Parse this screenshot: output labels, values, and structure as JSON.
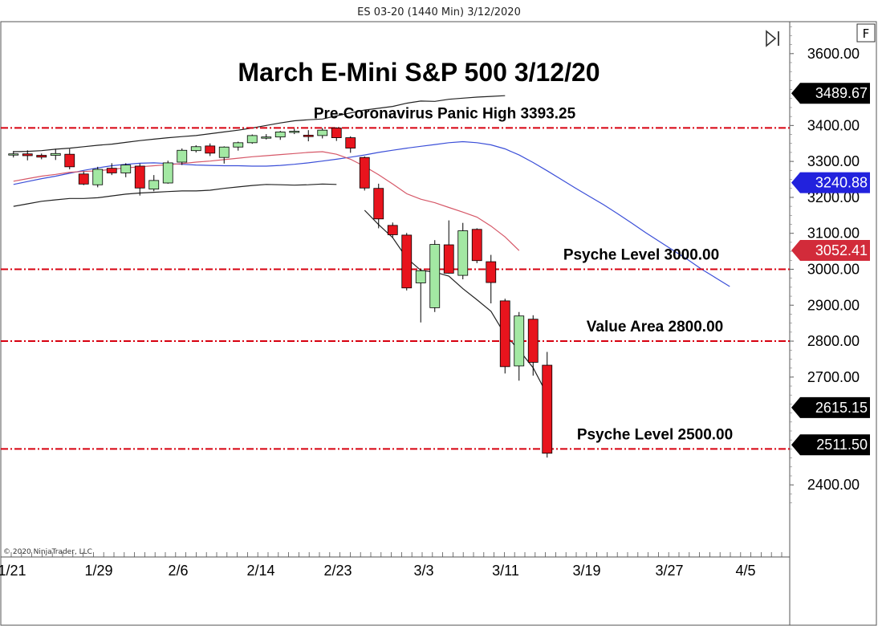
{
  "header": {
    "caption": "ES 03-20 (1440 Min)  3/12/2020",
    "f_button": "F",
    "copyright": "© 2020 NinjaTrader, LLC",
    "scroll_end_icon": "skip-to-end-icon"
  },
  "chart_data": {
    "type": "candlestick",
    "title": "March E-Mini S&P 500 3/12/20",
    "xlabel": "",
    "ylabel": "",
    "ylim": [
      2320,
      3700
    ],
    "grid": false,
    "y_ticks": [
      "3600.00",
      "3400.00",
      "3300.00",
      "3200.00",
      "3100.00",
      "3000.00",
      "2900.00",
      "2800.00",
      "2700.00",
      "2400.00"
    ],
    "x_ticks": [
      {
        "date": "1/21",
        "label": "1/21"
      },
      {
        "date": "1/29",
        "label": "1/29"
      },
      {
        "date": "2/6",
        "label": "2/6"
      },
      {
        "date": "2/14",
        "label": "2/14"
      },
      {
        "date": "2/23",
        "label": "2/23"
      },
      {
        "date": "3/3",
        "label": "3/3"
      },
      {
        "date": "3/11",
        "label": "3/11"
      },
      {
        "date": "3/19",
        "label": "3/19"
      },
      {
        "date": "3/27",
        "label": "3/27"
      },
      {
        "date": "4/5",
        "label": "4/5"
      }
    ],
    "candles": [
      {
        "date": "1/21",
        "open": 3318,
        "high": 3329,
        "low": 3311,
        "close": 3321
      },
      {
        "date": "1/22",
        "open": 3321,
        "high": 3331,
        "low": 3303,
        "close": 3316
      },
      {
        "date": "1/23",
        "open": 3317,
        "high": 3322,
        "low": 3306,
        "close": 3312
      },
      {
        "date": "1/24",
        "open": 3317,
        "high": 3335,
        "low": 3304,
        "close": 3322
      },
      {
        "date": "1/26",
        "open": 3320,
        "high": 3335,
        "low": 3278,
        "close": 3285
      },
      {
        "date": "1/27",
        "open": 3265,
        "high": 3272,
        "low": 3234,
        "close": 3237
      },
      {
        "date": "1/28",
        "open": 3235,
        "high": 3285,
        "low": 3228,
        "close": 3278
      },
      {
        "date": "1/29",
        "open": 3281,
        "high": 3295,
        "low": 3262,
        "close": 3268
      },
      {
        "date": "1/30",
        "open": 3268,
        "high": 3295,
        "low": 3256,
        "close": 3290
      },
      {
        "date": "1/31",
        "open": 3287,
        "high": 3294,
        "low": 3205,
        "close": 3226
      },
      {
        "date": "2/2",
        "open": 3223,
        "high": 3262,
        "low": 3217,
        "close": 3247
      },
      {
        "date": "2/3",
        "open": 3240,
        "high": 3302,
        "low": 3238,
        "close": 3296
      },
      {
        "date": "2/4",
        "open": 3298,
        "high": 3336,
        "low": 3290,
        "close": 3331
      },
      {
        "date": "2/5",
        "open": 3330,
        "high": 3345,
        "low": 3325,
        "close": 3341
      },
      {
        "date": "2/6",
        "open": 3343,
        "high": 3350,
        "low": 3315,
        "close": 3323
      },
      {
        "date": "2/7",
        "open": 3311,
        "high": 3342,
        "low": 3294,
        "close": 3340
      },
      {
        "date": "2/9",
        "open": 3340,
        "high": 3355,
        "low": 3330,
        "close": 3352
      },
      {
        "date": "2/10",
        "open": 3352,
        "high": 3375,
        "low": 3349,
        "close": 3372
      },
      {
        "date": "2/11",
        "open": 3368,
        "high": 3376,
        "low": 3361,
        "close": 3368
      },
      {
        "date": "2/12",
        "open": 3368,
        "high": 3385,
        "low": 3360,
        "close": 3382
      },
      {
        "date": "2/13",
        "open": 3383,
        "high": 3391,
        "low": 3376,
        "close": 3384
      },
      {
        "date": "2/14",
        "open": 3373,
        "high": 3387,
        "low": 3356,
        "close": 3369
      },
      {
        "date": "2/16",
        "open": 3372,
        "high": 3393,
        "low": 3364,
        "close": 3387
      },
      {
        "date": "2/18",
        "open": 3393,
        "high": 3395,
        "low": 3357,
        "close": 3366
      },
      {
        "date": "2/20",
        "open": 3366,
        "high": 3370,
        "low": 3324,
        "close": 3337
      },
      {
        "date": "2/21",
        "open": 3311,
        "high": 3314,
        "low": 3219,
        "close": 3226
      },
      {
        "date": "2/23",
        "open": 3225,
        "high": 3238,
        "low": 3114,
        "close": 3140
      },
      {
        "date": "2/24",
        "open": 3122,
        "high": 3130,
        "low": 3088,
        "close": 3096
      },
      {
        "date": "2/25",
        "open": 3095,
        "high": 3101,
        "low": 2941,
        "close": 2948
      },
      {
        "date": "2/26",
        "open": 2962,
        "high": 3001,
        "low": 2852,
        "close": 2996
      },
      {
        "date": "2/27",
        "open": 2893,
        "high": 3081,
        "low": 2881,
        "close": 3069
      },
      {
        "date": "2/28",
        "open": 3068,
        "high": 3136,
        "low": 2988,
        "close": 2989
      },
      {
        "date": "3/1",
        "open": 2983,
        "high": 3129,
        "low": 2972,
        "close": 3107
      },
      {
        "date": "3/2",
        "open": 3111,
        "high": 3114,
        "low": 3017,
        "close": 3024
      },
      {
        "date": "3/3",
        "open": 3021,
        "high": 3040,
        "low": 2905,
        "close": 2963
      },
      {
        "date": "3/4",
        "open": 2912,
        "high": 2918,
        "low": 2710,
        "close": 2729
      },
      {
        "date": "3/5",
        "open": 2731,
        "high": 2881,
        "low": 2690,
        "close": 2870
      },
      {
        "date": "3/6",
        "open": 2861,
        "high": 2872,
        "low": 2704,
        "close": 2741
      },
      {
        "date": "3/7",
        "open": 2733,
        "high": 2770,
        "low": 2476,
        "close": 2488
      }
    ],
    "series": [
      {
        "type": "line",
        "color": "#3b4fd8",
        "values": [
          3236,
          3244,
          3252,
          3259,
          3267,
          3275,
          3282,
          3288,
          3292,
          3295,
          3296,
          3294,
          3292,
          3290,
          3289,
          3288,
          3288,
          3287,
          3287,
          3289,
          3292,
          3296,
          3301,
          3306,
          3312,
          3318,
          3325,
          3331,
          3337,
          3342,
          3347,
          3352,
          3355,
          3352,
          3346,
          3335,
          3318,
          3297,
          3274,
          3250,
          3226,
          3203,
          3180,
          3155,
          3129,
          3102,
          3077,
          3052,
          3027,
          3000,
          2976,
          2952
        ]
      },
      {
        "type": "line",
        "color": "#d65868",
        "values": [
          3245,
          3252,
          3259,
          3264,
          3270,
          3272,
          3274,
          3278,
          3282,
          3285,
          3288,
          3291,
          3294,
          3298,
          3301,
          3305,
          3309,
          3313,
          3316,
          3319,
          3322,
          3325,
          3327,
          3320,
          3306,
          3286,
          3263,
          3237,
          3210,
          3195,
          3185,
          3172,
          3159,
          3145,
          3120,
          3090,
          3052
        ]
      },
      {
        "type": "line",
        "color": "#222222",
        "values": [
          3327,
          3328,
          3330,
          3334,
          3337,
          3341,
          3345,
          3348,
          3353,
          3358,
          3362,
          3366,
          3369,
          3372,
          3377,
          3382,
          3387,
          3393,
          3400,
          3407,
          3413,
          3416,
          3418,
          3427,
          3435,
          3443,
          3448,
          3453,
          3462,
          3468,
          3467,
          3473,
          3476,
          3479,
          3481,
          3483
        ]
      },
      {
        "type": "line",
        "color": "#222222",
        "values": [
          3175,
          3182,
          3189,
          3193,
          3197,
          3197,
          3199,
          3204,
          3209,
          3212,
          3214,
          3216,
          3218,
          3218,
          3220,
          3225,
          3229,
          3233,
          3236,
          3235,
          3234,
          3235,
          3237,
          3236
        ]
      },
      {
        "type": "line",
        "color": "#222222",
        "values": [
          3164,
          3124,
          3088,
          3031,
          2997,
          2992,
          2981,
          2946,
          2915,
          2883,
          2818,
          2775,
          2726,
          2651
        ]
      }
    ],
    "horizontal_levels": [
      {
        "name": "Pre-Coronavirus Panic High 3393.25",
        "value": 3393.25,
        "color": "#d7000f"
      },
      {
        "name": "Psyche Level 3000.00",
        "value": 3000.0,
        "color": "#d7000f"
      },
      {
        "name": "Value Area 2800.00",
        "value": 2800.0,
        "color": "#d7000f"
      },
      {
        "name": "Psyche Level 2500.00",
        "value": 2500.0,
        "color": "#d7000f"
      }
    ],
    "price_tags": [
      {
        "label": "3489.67",
        "value": 3489.67,
        "color": "#000000"
      },
      {
        "label": "3240.88",
        "value": 3240.88,
        "color": "#2222dd"
      },
      {
        "label": "3052.41",
        "value": 3052.41,
        "color": "#d22b3a"
      },
      {
        "label": "2615.15",
        "value": 2615.15,
        "color": "#000000"
      },
      {
        "label": "2511.50",
        "value": 2511.5,
        "color": "#000000"
      }
    ],
    "up_color": "#a3e8a3",
    "down_color": "#e8141d"
  }
}
